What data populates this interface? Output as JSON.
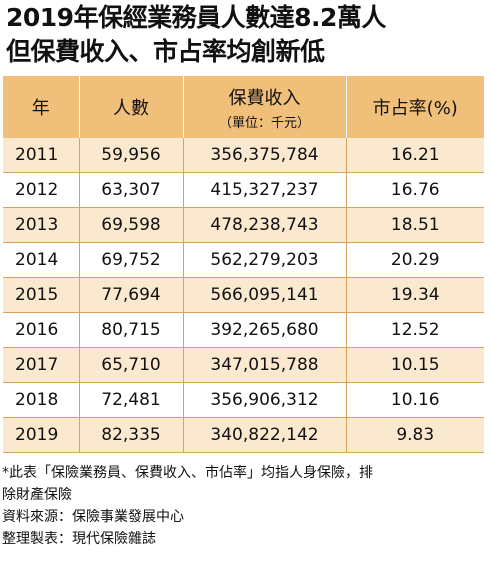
{
  "title_line1": "2019年保經業務員人數達8.2萬人",
  "title_line2": "但保費收入、市占率均創新低",
  "table": {
    "headers": {
      "year": "年",
      "people": "人數",
      "premium": "保費收入",
      "premium_unit": "（單位：千元）",
      "share": "市占率(%)"
    },
    "rows": [
      {
        "year": "2011",
        "people": "59,956",
        "premium": "356,375,784",
        "share": "16.21"
      },
      {
        "year": "2012",
        "people": "63,307",
        "premium": "415,327,237",
        "share": "16.76"
      },
      {
        "year": "2013",
        "people": "69,598",
        "premium": "478,238,743",
        "share": "18.51"
      },
      {
        "year": "2014",
        "people": "69,752",
        "premium": "562,279,203",
        "share": "20.29"
      },
      {
        "year": "2015",
        "people": "77,694",
        "premium": "566,095,141",
        "share": "19.34"
      },
      {
        "year": "2016",
        "people": "80,715",
        "premium": "392,265,680",
        "share": "12.52"
      },
      {
        "year": "2017",
        "people": "65,710",
        "premium": "347,015,788",
        "share": "10.15"
      },
      {
        "year": "2018",
        "people": "72,481",
        "premium": "356,906,312",
        "share": "10.16"
      },
      {
        "year": "2019",
        "people": "82,335",
        "premium": "340,822,142",
        "share": "9.83"
      }
    ]
  },
  "notes": {
    "line1": "*此表「保險業務員、保費收入、市佔率」均指人身保險，排",
    "line2": "除財產保險",
    "source": "資料來源：保險事業發展中心",
    "producer": "整理製表：現代保險雜誌"
  },
  "colors": {
    "header_bg": "#f0bf79",
    "stripe_bg": "#fbe9cf",
    "border": "#d9a35b"
  }
}
